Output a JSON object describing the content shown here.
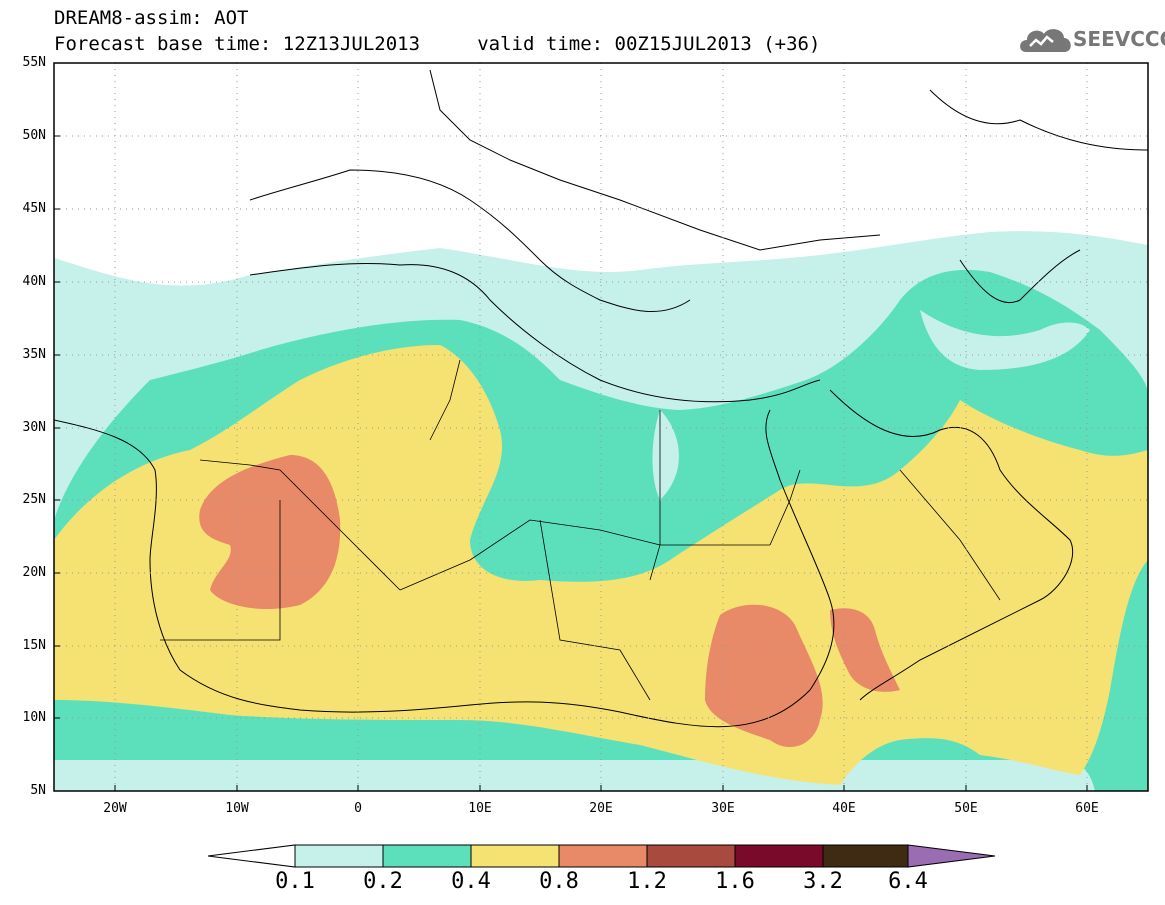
{
  "header": {
    "title_line1": "DREAM8-assim: AOT",
    "title_line2": "Forecast base time: 12Z13JUL2013     valid time: 00Z15JUL2013 (+36)"
  },
  "logo": {
    "text": "SEEVCCC",
    "icon": "cloud-icon"
  },
  "map": {
    "projection": "lat-lon",
    "lon_range": [
      -25,
      65
    ],
    "lat_range": [
      5,
      55
    ],
    "grid": true,
    "y_ticks": [
      "55N",
      "50N",
      "45N",
      "40N",
      "35N",
      "30N",
      "25N",
      "20N",
      "15N",
      "10N",
      "5N"
    ],
    "x_ticks": [
      "20W",
      "10W",
      "0",
      "10E",
      "20E",
      "30E",
      "40E",
      "50E",
      "60E"
    ]
  },
  "colorbar": {
    "levels": [
      "0.1",
      "0.2",
      "0.4",
      "0.8",
      "1.2",
      "1.6",
      "3.2",
      "6.4"
    ],
    "colors": [
      "#ffffff",
      "#c6f0ea",
      "#5ce0bc",
      "#f5e272",
      "#e88a68",
      "#a84a3e",
      "#7a0a2a",
      "#3f2a14",
      "#9a6cb2"
    ]
  }
}
